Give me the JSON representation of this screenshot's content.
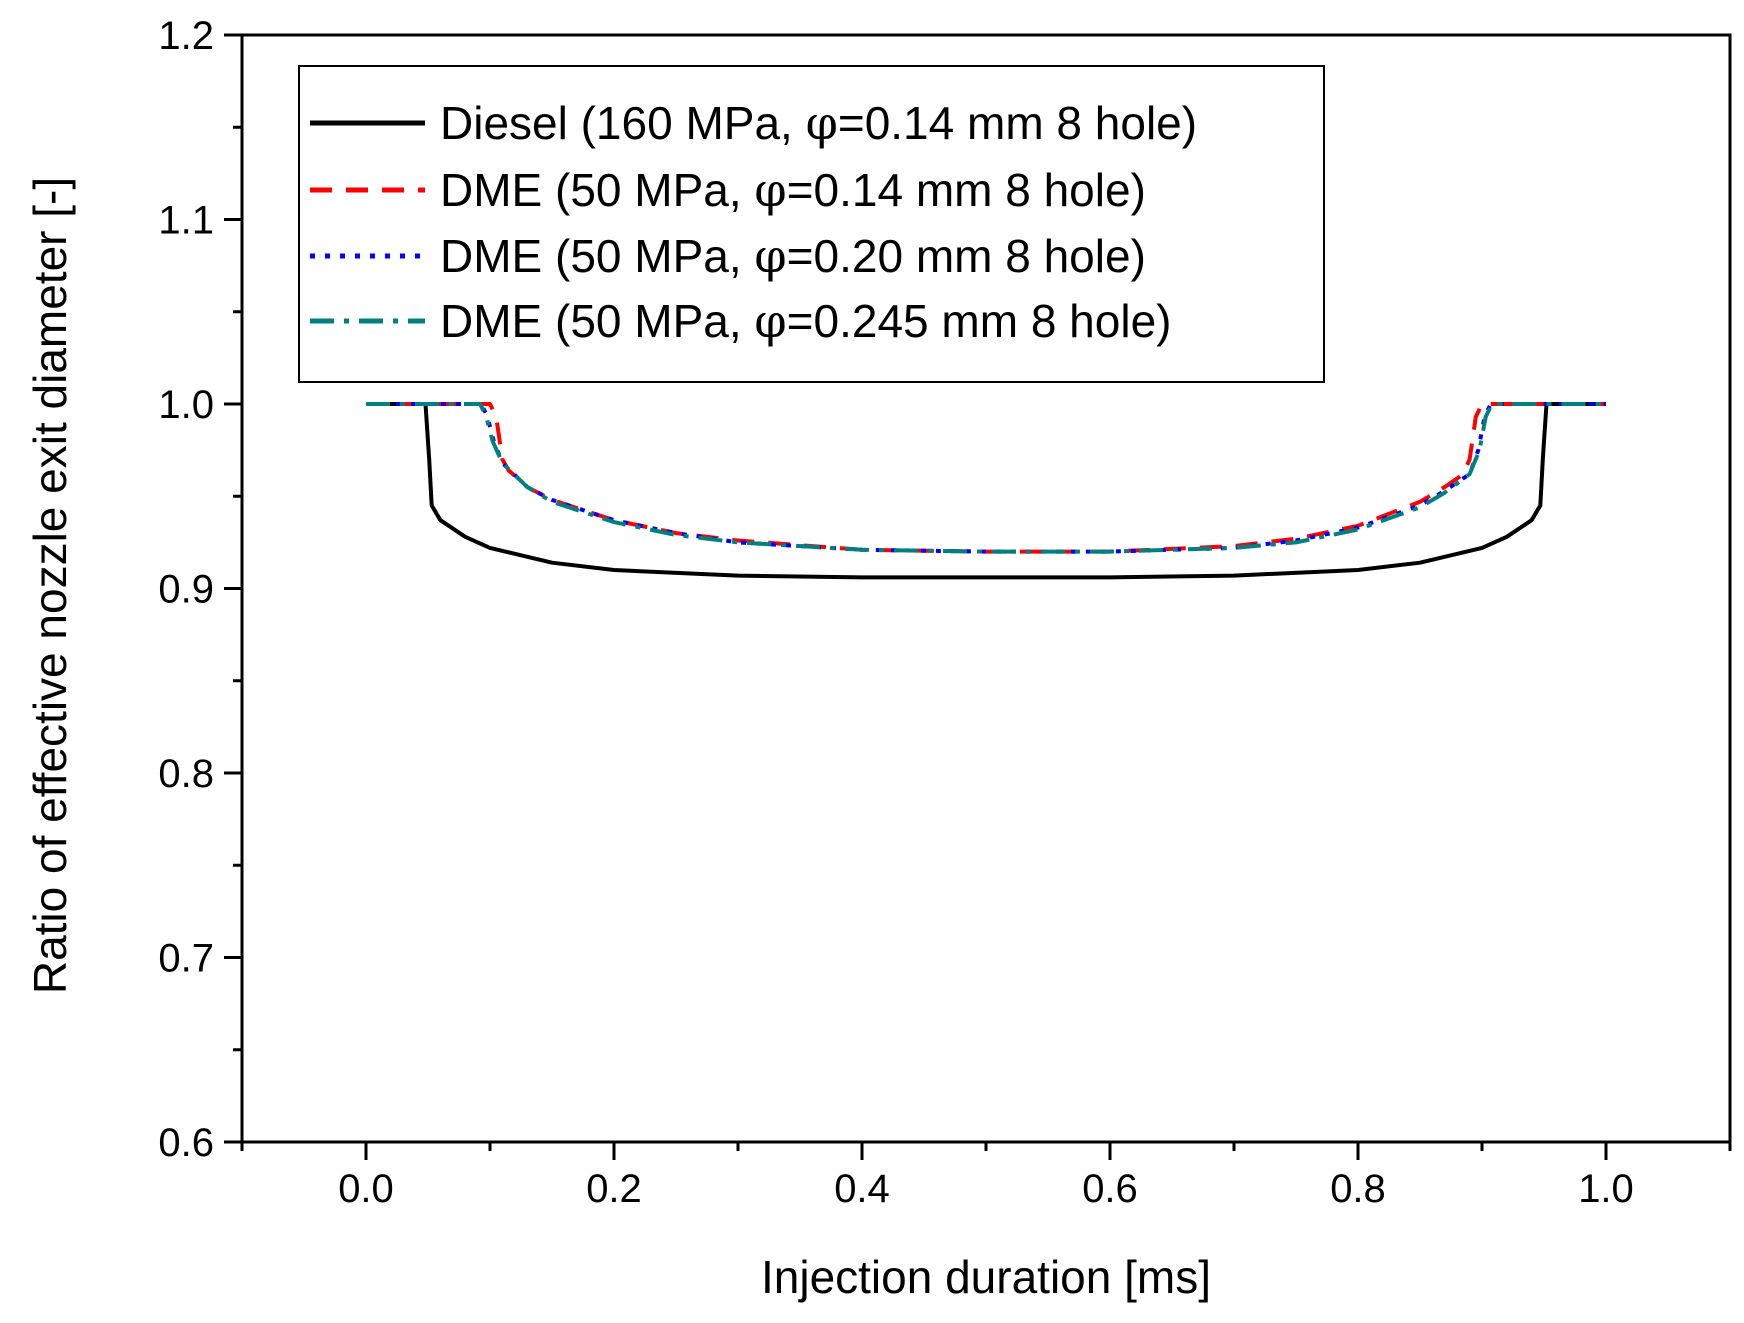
{
  "chart_data": {
    "type": "line",
    "title": "",
    "xlabel": "Injection duration [ms]",
    "ylabel": "Ratio of effective nozzle exit diameter [-]",
    "xlim": [
      -0.1,
      1.1
    ],
    "ylim": [
      0.6,
      1.2
    ],
    "x_ticks": [
      0.0,
      0.2,
      0.4,
      0.6,
      0.8,
      1.0
    ],
    "x_tick_labels": [
      "0.0",
      "0.2",
      "0.4",
      "0.6",
      "0.8",
      "1.0"
    ],
    "y_ticks": [
      0.6,
      0.7,
      0.8,
      0.9,
      1.0,
      1.1,
      1.2
    ],
    "y_tick_labels": [
      "0.6",
      "0.7",
      "0.8",
      "0.9",
      "1.0",
      "1.1",
      "1.2"
    ],
    "grid": false,
    "legend_position": "top-left",
    "series": [
      {
        "name": "Diesel (160 MPa, φ=0.14 mm 8 hole)",
        "label_prefix": "Diesel (160 MPa, ",
        "label_suffix": "=0.14 mm 8 hole)",
        "color": "#000000",
        "dash": "solid",
        "x": [
          0.0,
          0.048,
          0.051,
          0.053,
          0.06,
          0.08,
          0.1,
          0.15,
          0.2,
          0.3,
          0.4,
          0.5,
          0.6,
          0.7,
          0.8,
          0.85,
          0.9,
          0.92,
          0.94,
          0.947,
          0.949,
          0.952,
          1.0
        ],
        "y": [
          1.0,
          1.0,
          0.97,
          0.945,
          0.937,
          0.928,
          0.922,
          0.914,
          0.91,
          0.907,
          0.906,
          0.906,
          0.906,
          0.907,
          0.91,
          0.914,
          0.922,
          0.928,
          0.937,
          0.945,
          0.97,
          1.0,
          1.0
        ]
      },
      {
        "name": "DME (50 MPa, φ=0.14 mm 8 hole)",
        "label_prefix": "DME (50 MPa, ",
        "label_suffix": "=0.14 mm 8 hole)",
        "color": "#ff0000",
        "dash": "dash",
        "x": [
          0.0,
          0.1,
          0.105,
          0.11,
          0.115,
          0.13,
          0.15,
          0.2,
          0.25,
          0.3,
          0.4,
          0.5,
          0.6,
          0.7,
          0.75,
          0.8,
          0.85,
          0.87,
          0.885,
          0.89,
          0.895,
          0.9,
          1.0
        ],
        "y": [
          1.0,
          1.0,
          0.993,
          0.97,
          0.964,
          0.955,
          0.948,
          0.937,
          0.93,
          0.926,
          0.921,
          0.92,
          0.92,
          0.923,
          0.927,
          0.934,
          0.947,
          0.955,
          0.962,
          0.97,
          0.993,
          1.0,
          1.0
        ]
      },
      {
        "name": "DME (50 MPa, φ=0.20 mm 8 hole)",
        "label_prefix": "DME (50 MPa, ",
        "label_suffix": "=0.20 mm 8 hole)",
        "color": "#0000ff",
        "dash": "dot",
        "x": [
          0.0,
          0.093,
          0.098,
          0.103,
          0.11,
          0.13,
          0.15,
          0.2,
          0.25,
          0.3,
          0.4,
          0.5,
          0.6,
          0.7,
          0.75,
          0.8,
          0.85,
          0.87,
          0.89,
          0.897,
          0.902,
          0.907,
          1.0
        ],
        "y": [
          1.0,
          1.0,
          0.993,
          0.98,
          0.968,
          0.955,
          0.948,
          0.937,
          0.93,
          0.925,
          0.921,
          0.92,
          0.92,
          0.922,
          0.926,
          0.933,
          0.945,
          0.953,
          0.962,
          0.975,
          0.993,
          1.0,
          1.0
        ]
      },
      {
        "name": "DME (50 MPa, φ=0.245 mm 8 hole)",
        "label_prefix": "DME (50 MPa, ",
        "label_suffix": "=0.245 mm 8 hole)",
        "color": "#008080",
        "dash": "dashdot",
        "x": [
          0.0,
          0.092,
          0.097,
          0.102,
          0.11,
          0.13,
          0.15,
          0.2,
          0.25,
          0.3,
          0.4,
          0.5,
          0.6,
          0.7,
          0.75,
          0.8,
          0.85,
          0.87,
          0.89,
          0.898,
          0.903,
          0.908,
          1.0
        ],
        "y": [
          1.0,
          1.0,
          0.993,
          0.98,
          0.968,
          0.955,
          0.947,
          0.936,
          0.929,
          0.925,
          0.921,
          0.92,
          0.92,
          0.922,
          0.925,
          0.932,
          0.944,
          0.952,
          0.962,
          0.975,
          0.993,
          1.0,
          1.0
        ]
      }
    ]
  }
}
